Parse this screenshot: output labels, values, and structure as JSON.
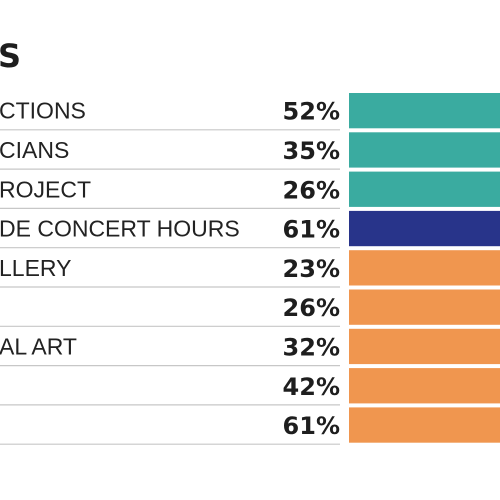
{
  "heading": "S",
  "colors": {
    "group_teal": "#3aaba0",
    "group_navy": "#28348a",
    "group_orange": "#f0964f",
    "divider": "#c7c7c7"
  },
  "chart_data": {
    "type": "bar",
    "orientation": "horizontal",
    "title": "S",
    "categories": [
      "CTIONS",
      "CIANS",
      "ROJECT",
      "DE CONCERT HOURS",
      "LLERY",
      "",
      "AL ART",
      "",
      ""
    ],
    "value_labels": [
      "52%",
      "35%",
      "26%",
      "61%",
      "23%",
      "26%",
      "32%",
      "42%",
      "61%"
    ],
    "values": [
      52,
      35,
      26,
      61,
      23,
      26,
      32,
      42,
      61
    ],
    "unit": "%",
    "bar_colors": [
      "#3aaba0",
      "#3aaba0",
      "#3aaba0",
      "#28348a",
      "#f0964f",
      "#f0964f",
      "#f0964f",
      "#f0964f",
      "#f0964f"
    ],
    "grid": false,
    "legend": "none"
  }
}
